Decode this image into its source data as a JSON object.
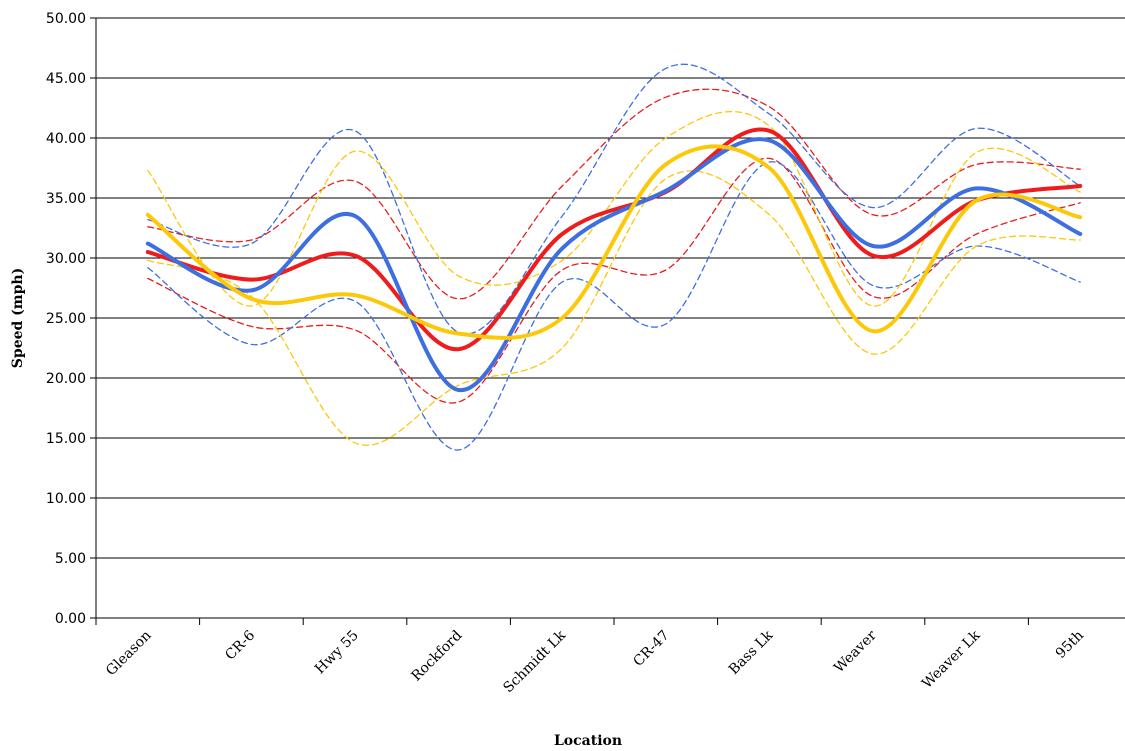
{
  "chart_data": {
    "type": "line",
    "title": "",
    "xlabel": "Location",
    "ylabel": "Speed (mph)",
    "categories": [
      "Gleason",
      "CR-6",
      "Hwy 55",
      "Rockford",
      "Schmidt Lk",
      "CR-47",
      "Bass Lk",
      "Weaver",
      "Weaver Lk",
      "95th"
    ],
    "ylim": [
      0,
      50
    ],
    "yticks": [
      "0.00",
      "5.00",
      "10.00",
      "15.00",
      "20.00",
      "25.00",
      "30.00",
      "35.00",
      "40.00",
      "45.00",
      "50.00"
    ],
    "grid": true,
    "legend": "none",
    "series": [
      {
        "color": "#ee1c1c",
        "style": "solid",
        "values": [
          30.5,
          28.2,
          30.2,
          22.4,
          32.0,
          35.5,
          40.6,
          30.2,
          34.8,
          36.0
        ]
      },
      {
        "color": "#e61e1e",
        "style": "dashed",
        "values": [
          32.6,
          31.5,
          36.4,
          26.6,
          36.0,
          43.4,
          42.6,
          33.6,
          37.8,
          37.4
        ]
      },
      {
        "color": "#e61e1e",
        "style": "dashed",
        "values": [
          28.3,
          24.3,
          24.0,
          18.0,
          29.0,
          29.0,
          38.3,
          26.8,
          32.0,
          34.6
        ]
      },
      {
        "color": "#3e6fe0",
        "style": "solid",
        "values": [
          31.2,
          27.3,
          33.5,
          19.0,
          30.8,
          35.6,
          39.8,
          31.0,
          35.8,
          32.0
        ]
      },
      {
        "color": "#3e6fe0",
        "style": "dashed",
        "values": [
          33.2,
          31.2,
          40.6,
          23.8,
          33.5,
          45.8,
          42.0,
          34.2,
          40.8,
          36.0
        ]
      },
      {
        "color": "#3e6fe0",
        "style": "dashed",
        "values": [
          29.2,
          22.8,
          26.4,
          14.0,
          28.0,
          24.5,
          38.0,
          27.7,
          31.0,
          28.0
        ]
      },
      {
        "color": "#fcc80a",
        "style": "solid",
        "values": [
          33.6,
          26.6,
          26.9,
          23.7,
          25.0,
          37.8,
          37.5,
          23.9,
          34.8,
          33.4
        ]
      },
      {
        "color": "#fcc80a",
        "style": "dashed",
        "values": [
          37.3,
          26.0,
          38.9,
          28.5,
          29.8,
          40.0,
          41.0,
          26.0,
          38.8,
          35.5
        ]
      },
      {
        "color": "#fcc80a",
        "style": "dashed",
        "values": [
          29.8,
          26.8,
          14.6,
          19.4,
          22.5,
          36.6,
          33.6,
          22.0,
          31.0,
          31.5
        ]
      }
    ]
  }
}
